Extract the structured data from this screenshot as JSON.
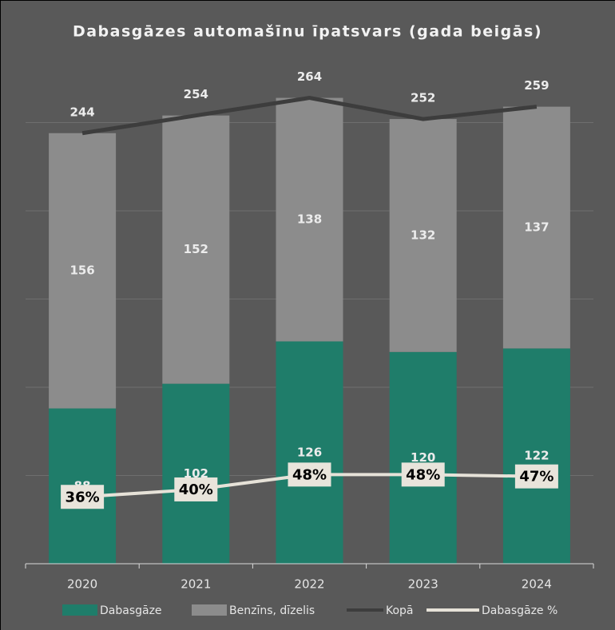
{
  "chart_data": {
    "type": "bar",
    "title": "Dabasgāzes automašīnu īpatsvars (gada beigās)",
    "categories": [
      "2020",
      "2021",
      "2022",
      "2023",
      "2024"
    ],
    "series": [
      {
        "name": "Dabasgāze",
        "color": "#1f7d6a",
        "values": [
          88,
          102,
          126,
          120,
          122
        ]
      },
      {
        "name": "Benzīns, dīzelis",
        "color": "#8c8c8c",
        "values": [
          156,
          152,
          138,
          132,
          137
        ]
      },
      {
        "name": "Kopā",
        "type": "line",
        "color": "#3d3d3d",
        "values": [
          244,
          254,
          264,
          252,
          259
        ]
      },
      {
        "name": "Dabasgāze %",
        "type": "line",
        "axis": "y2",
        "color": "#e6e2d8",
        "values": [
          36,
          40,
          48,
          48,
          47
        ],
        "value_labels": [
          "36%",
          "40%",
          "48%",
          "48%",
          "47%"
        ]
      }
    ],
    "stacked": true,
    "ylim": [
      0,
      300
    ],
    "yticks": [
      0,
      50,
      100,
      150,
      200,
      250
    ],
    "y2lim": [
      0,
      285
    ],
    "grid": true
  }
}
